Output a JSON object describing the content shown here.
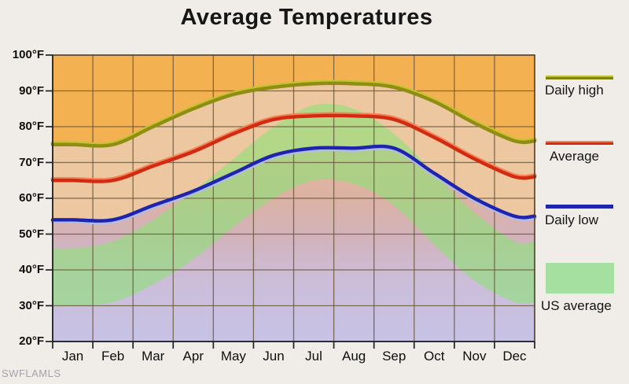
{
  "watermark": "SWFLAMLS",
  "chart_data": {
    "type": "line",
    "title": "Average Temperatures",
    "x": [
      "Jan",
      "Feb",
      "Mar",
      "Apr",
      "May",
      "Jun",
      "Jul",
      "Aug",
      "Sep",
      "Oct",
      "Nov",
      "Dec"
    ],
    "xlabel": "",
    "ylabel": "",
    "ylim": [
      20,
      100
    ],
    "ytick_step": 10,
    "ytick_suffix": "°F",
    "grid": true,
    "legend_position": "right",
    "series": [
      {
        "name": "Daily high",
        "type": "line",
        "color": "#8f8d12",
        "values": [
          75,
          75,
          80,
          85,
          89,
          91,
          92,
          92,
          91,
          87,
          81,
          76
        ]
      },
      {
        "name": "Average",
        "type": "line",
        "color": "#d22b10",
        "values": [
          65,
          65,
          69,
          73,
          78,
          82,
          83,
          83,
          82,
          77,
          71,
          66
        ]
      },
      {
        "name": "Daily low",
        "type": "line",
        "color": "#1d24ad",
        "values": [
          54,
          54,
          58,
          62,
          67,
          72,
          74,
          74,
          74,
          67,
          60,
          55
        ]
      },
      {
        "name": "US average",
        "type": "band",
        "color": "#8ee078",
        "high": [
          46,
          48,
          54,
          62,
          71,
          80,
          86,
          85,
          78,
          67,
          56,
          48
        ],
        "low": [
          30,
          31,
          36,
          43,
          52,
          60,
          65,
          64,
          58,
          47,
          37,
          31
        ]
      }
    ]
  },
  "legend": {
    "items": [
      {
        "label": "Daily high",
        "swatch": "line-olive"
      },
      {
        "label": "Average",
        "swatch": "line-red"
      },
      {
        "label": "Daily low",
        "swatch": "line-blue"
      },
      {
        "label": "US average",
        "swatch": "area-green"
      }
    ]
  }
}
